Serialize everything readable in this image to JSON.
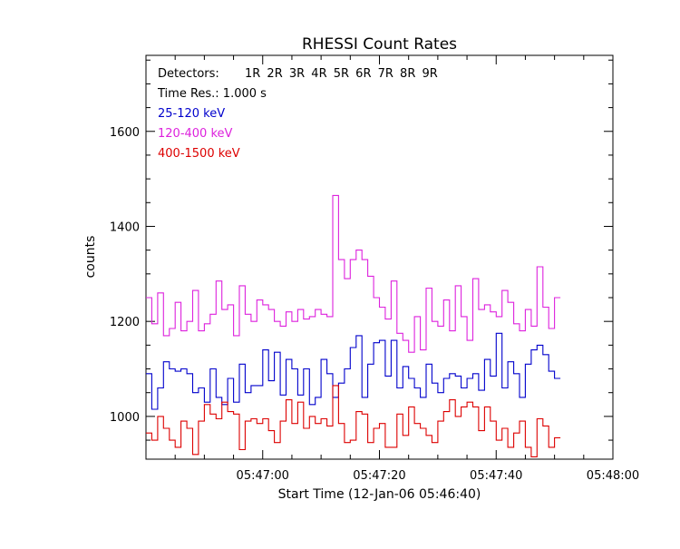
{
  "chart_data": {
    "type": "line",
    "title": "RHESSI Count Rates",
    "xlabel": "Start Time (12-Jan-06 05:46:40)",
    "ylabel": "counts",
    "x_units": "seconds since 05:46:40",
    "xlim": [
      0,
      80
    ],
    "ylim": [
      910,
      1760
    ],
    "x_ticks": [
      {
        "value": 20,
        "label": "05:47:00"
      },
      {
        "value": 40,
        "label": "05:47:20"
      },
      {
        "value": 60,
        "label": "05:47:40"
      },
      {
        "value": 80,
        "label": "05:48:00"
      }
    ],
    "y_ticks": [
      {
        "value": 1000,
        "label": "1000"
      },
      {
        "value": 1200,
        "label": "1200"
      },
      {
        "value": 1400,
        "label": "1400"
      },
      {
        "value": 1600,
        "label": "1600"
      }
    ],
    "annotations": {
      "detectors_label": "Detectors:",
      "detectors_value": "1R 2R 3R 4R 5R 6R 7R 8R 9R",
      "time_res": "Time Res.: 1.000 s"
    },
    "series": [
      {
        "name": "25-120 keV",
        "color": "#0000cc",
        "values": [
          1090,
          1015,
          1060,
          1115,
          1100,
          1095,
          1100,
          1090,
          1050,
          1060,
          1030,
          1100,
          1040,
          1025,
          1080,
          1030,
          1110,
          1050,
          1065,
          1065,
          1140,
          1075,
          1135,
          1045,
          1120,
          1100,
          1045,
          1100,
          1025,
          1040,
          1120,
          1090,
          1040,
          1070,
          1100,
          1145,
          1170,
          1040,
          1110,
          1155,
          1160,
          1085,
          1160,
          1060,
          1105,
          1080,
          1060,
          1040,
          1110,
          1070,
          1050,
          1080,
          1090,
          1085,
          1060,
          1080,
          1090,
          1055,
          1120,
          1085,
          1175,
          1060,
          1115,
          1090,
          1040,
          1110,
          1140,
          1150,
          1130,
          1095,
          1080
        ]
      },
      {
        "name": "120-400 keV",
        "color": "#dd22dd",
        "values": [
          1250,
          1195,
          1260,
          1170,
          1185,
          1240,
          1180,
          1200,
          1265,
          1180,
          1195,
          1215,
          1285,
          1225,
          1235,
          1170,
          1275,
          1215,
          1200,
          1245,
          1235,
          1225,
          1200,
          1190,
          1220,
          1200,
          1225,
          1205,
          1210,
          1225,
          1215,
          1210,
          1465,
          1330,
          1290,
          1330,
          1350,
          1330,
          1295,
          1250,
          1230,
          1205,
          1285,
          1175,
          1160,
          1135,
          1210,
          1140,
          1270,
          1200,
          1190,
          1245,
          1180,
          1275,
          1210,
          1160,
          1290,
          1225,
          1235,
          1220,
          1210,
          1265,
          1240,
          1195,
          1180,
          1225,
          1190,
          1315,
          1230,
          1185,
          1250
        ]
      },
      {
        "name": "400-1500 keV",
        "color": "#dd0000",
        "values": [
          965,
          950,
          1000,
          975,
          950,
          935,
          990,
          975,
          920,
          990,
          1025,
          1005,
          995,
          1030,
          1010,
          1005,
          930,
          990,
          995,
          985,
          995,
          970,
          945,
          990,
          1035,
          985,
          1030,
          975,
          1000,
          985,
          995,
          980,
          1065,
          985,
          945,
          950,
          1010,
          1005,
          945,
          975,
          985,
          935,
          935,
          1005,
          960,
          1020,
          985,
          975,
          960,
          945,
          990,
          1010,
          1035,
          1000,
          1020,
          1030,
          1020,
          970,
          1020,
          990,
          950,
          975,
          935,
          965,
          990,
          935,
          915,
          995,
          980,
          935,
          955
        ]
      }
    ]
  }
}
